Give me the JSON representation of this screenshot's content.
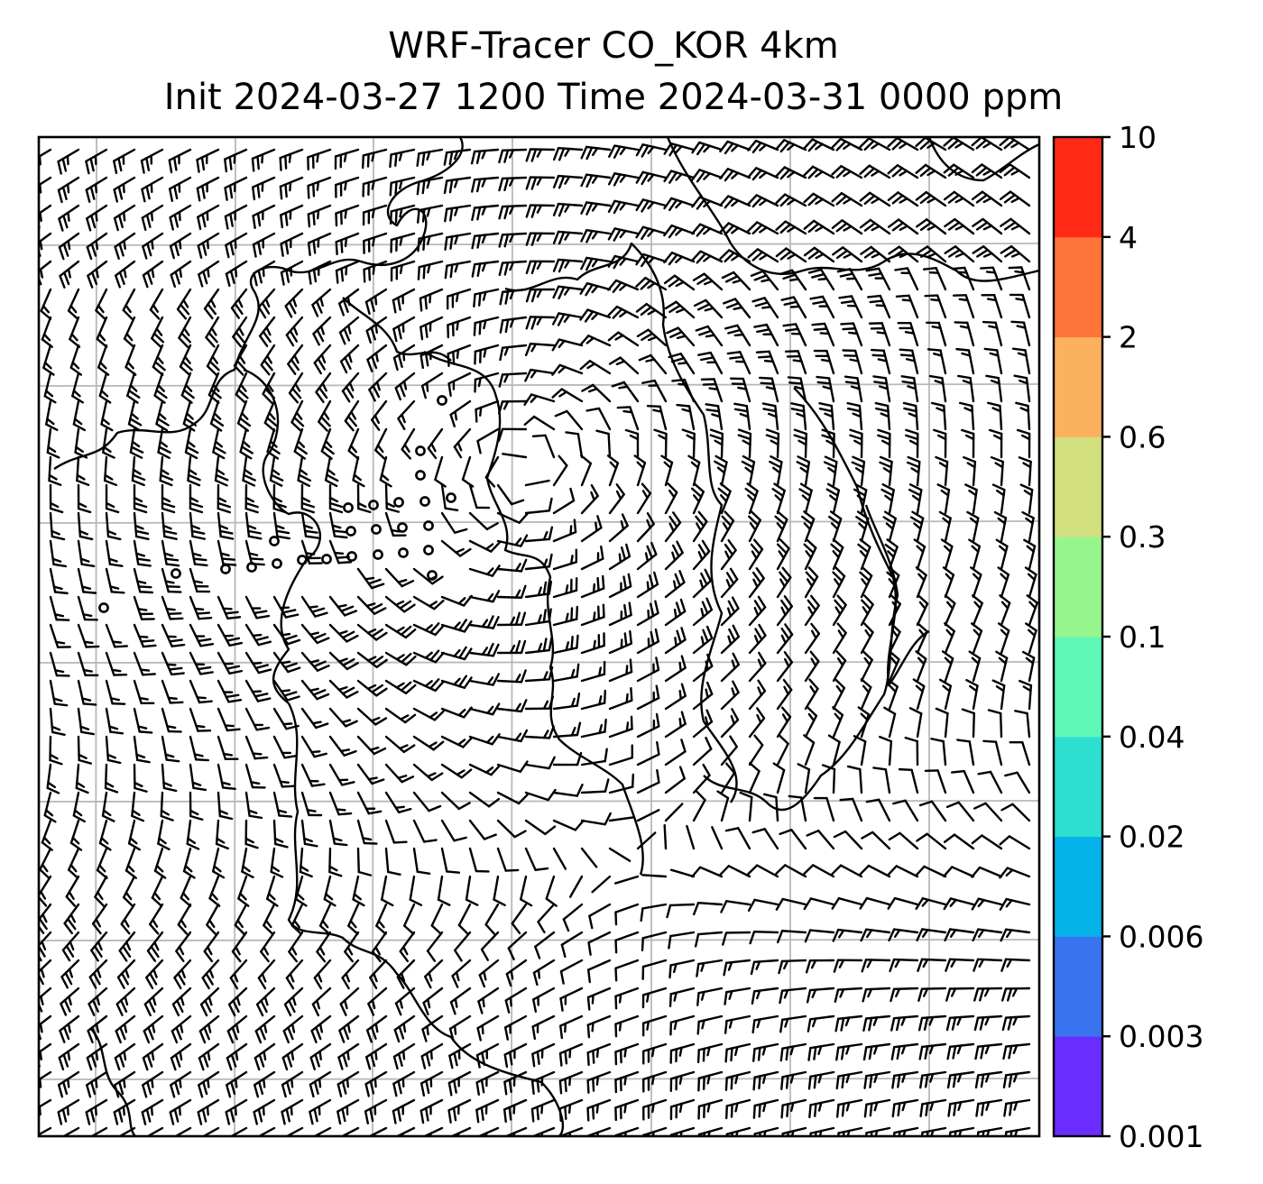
{
  "title": {
    "line1": "WRF-Tracer CO_KOR 4km",
    "line2": "Init 2024-03-27 1200 Time 2024-03-31 0000 ppm"
  },
  "map": {
    "type": "wind barbs over tracer concentration field",
    "gridlines": true,
    "coastlines": true,
    "calm_points_visible": true
  },
  "colorbar": {
    "tick_labels": [
      "0.001",
      "0.003",
      "0.006",
      "0.02",
      "0.04",
      "0.1",
      "0.3",
      "0.6",
      "2",
      "4",
      "10"
    ],
    "colors": [
      "#6a2cff",
      "#3a73f0",
      "#05b2ea",
      "#2ddfd0",
      "#5ff7b6",
      "#97f58e",
      "#d2df7e",
      "#fcb15f",
      "#ff7438",
      "#ff2a16"
    ]
  }
}
